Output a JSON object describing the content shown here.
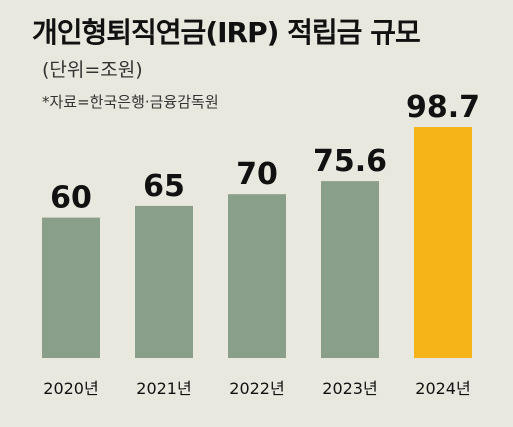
{
  "chart_data": {
    "type": "bar",
    "title": "개인형퇴직연금(IRP) 적립금 규모",
    "unit": "(단위=조원)",
    "source": "*자료=한국은행·금융감독원",
    "xlabel": "",
    "ylabel": "",
    "categories": [
      "2020년",
      "2021년",
      "2022년",
      "2023년",
      "2024년"
    ],
    "values": [
      60,
      65,
      70,
      75.6,
      98.7
    ],
    "value_labels": [
      "60",
      "65",
      "70",
      "75.6",
      "98.7"
    ],
    "ylim": [
      0,
      100
    ],
    "grid": false,
    "legend": "none",
    "colors": {
      "default_bar": "#8a9f8a",
      "highlight_bar": "#f6b419",
      "background": "#e9e8df",
      "text": "#111111"
    },
    "highlight_index": 4
  }
}
